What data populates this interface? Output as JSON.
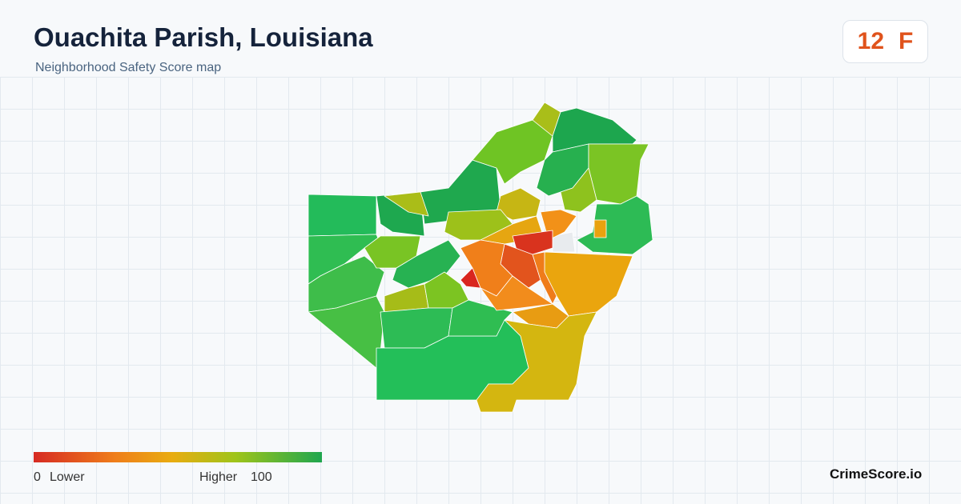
{
  "header": {
    "title": "Ouachita Parish, Louisiana",
    "subtitle": "Neighborhood Safety Score map"
  },
  "score": {
    "value": 12,
    "grade": "F"
  },
  "legend": {
    "min": 0,
    "min_label": "Lower",
    "max_label": "Higher",
    "max": 100
  },
  "brand": "CrimeScore.io"
}
